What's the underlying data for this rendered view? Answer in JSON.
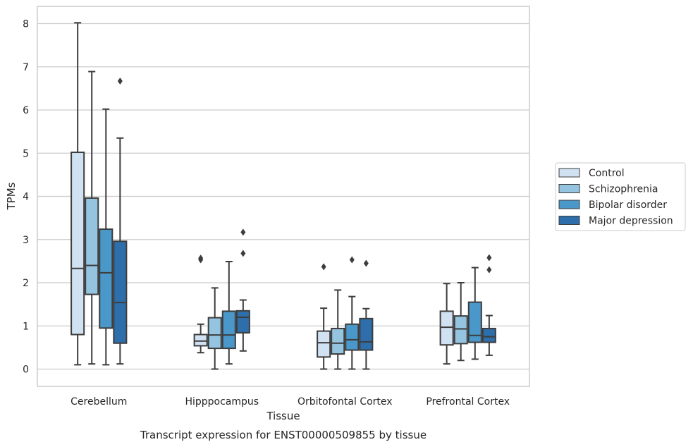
{
  "chart_data": {
    "type": "box",
    "title": "",
    "caption": "Transcript expression for ENST00000509855 by tissue",
    "xlabel": "Tissue",
    "ylabel": "TPMs",
    "ylim": [
      -0.4,
      8.4
    ],
    "yticks": [
      0,
      1,
      2,
      3,
      4,
      5,
      6,
      7,
      8
    ],
    "grid": "horizontal",
    "legend_position": "right",
    "categories": [
      "Cerebellum",
      "Hipppocampus",
      "Orbitofontal Cortex",
      "Prefrontal Cortex"
    ],
    "series": [
      {
        "name": "Control",
        "color": "#d0e1f2",
        "boxes": [
          {
            "whisker_low": 0.1,
            "q1": 0.8,
            "median": 2.33,
            "q3": 5.02,
            "whisker_high": 8.02,
            "outliers": []
          },
          {
            "whisker_low": 0.38,
            "q1": 0.54,
            "median": 0.65,
            "q3": 0.8,
            "whisker_high": 1.04,
            "outliers": [
              2.53,
              2.57
            ]
          },
          {
            "whisker_low": 0.0,
            "q1": 0.28,
            "median": 0.61,
            "q3": 0.88,
            "whisker_high": 1.41,
            "outliers": [
              2.37
            ]
          },
          {
            "whisker_low": 0.12,
            "q1": 0.56,
            "median": 0.97,
            "q3": 1.34,
            "whisker_high": 1.98,
            "outliers": []
          }
        ]
      },
      {
        "name": "Schizophrenia",
        "color": "#94c4df",
        "boxes": [
          {
            "whisker_low": 0.12,
            "q1": 1.73,
            "median": 2.4,
            "q3": 3.96,
            "whisker_high": 6.89,
            "outliers": []
          },
          {
            "whisker_low": 0.0,
            "q1": 0.48,
            "median": 0.79,
            "q3": 1.19,
            "whisker_high": 1.88,
            "outliers": []
          },
          {
            "whisker_low": 0.0,
            "q1": 0.35,
            "median": 0.6,
            "q3": 0.94,
            "whisker_high": 1.83,
            "outliers": []
          },
          {
            "whisker_low": 0.2,
            "q1": 0.59,
            "median": 0.93,
            "q3": 1.23,
            "whisker_high": 2.0,
            "outliers": []
          }
        ]
      },
      {
        "name": "Bipolar disorder",
        "color": "#4a98c9",
        "boxes": [
          {
            "whisker_low": 0.1,
            "q1": 0.95,
            "median": 2.23,
            "q3": 3.24,
            "whisker_high": 6.02,
            "outliers": []
          },
          {
            "whisker_low": 0.12,
            "q1": 0.48,
            "median": 0.79,
            "q3": 1.34,
            "whisker_high": 2.49,
            "outliers": []
          },
          {
            "whisker_low": 0.0,
            "q1": 0.44,
            "median": 0.68,
            "q3": 1.04,
            "whisker_high": 1.68,
            "outliers": [
              2.53
            ]
          },
          {
            "whisker_low": 0.23,
            "q1": 0.62,
            "median": 0.78,
            "q3": 1.55,
            "whisker_high": 2.35,
            "outliers": []
          }
        ]
      },
      {
        "name": "Major depression",
        "color": "#2e6eaa",
        "boxes": [
          {
            "whisker_low": 0.12,
            "q1": 0.6,
            "median": 1.54,
            "q3": 2.96,
            "whisker_high": 5.35,
            "outliers": [
              6.67
            ]
          },
          {
            "whisker_low": 0.42,
            "q1": 0.84,
            "median": 1.2,
            "q3": 1.35,
            "whisker_high": 1.6,
            "outliers": [
              2.68,
              3.17
            ]
          },
          {
            "whisker_low": 0.0,
            "q1": 0.44,
            "median": 0.63,
            "q3": 1.17,
            "whisker_high": 1.4,
            "outliers": [
              2.45
            ]
          },
          {
            "whisker_low": 0.32,
            "q1": 0.62,
            "median": 0.75,
            "q3": 0.94,
            "whisker_high": 1.24,
            "outliers": [
              2.3,
              2.58
            ]
          }
        ]
      }
    ]
  }
}
